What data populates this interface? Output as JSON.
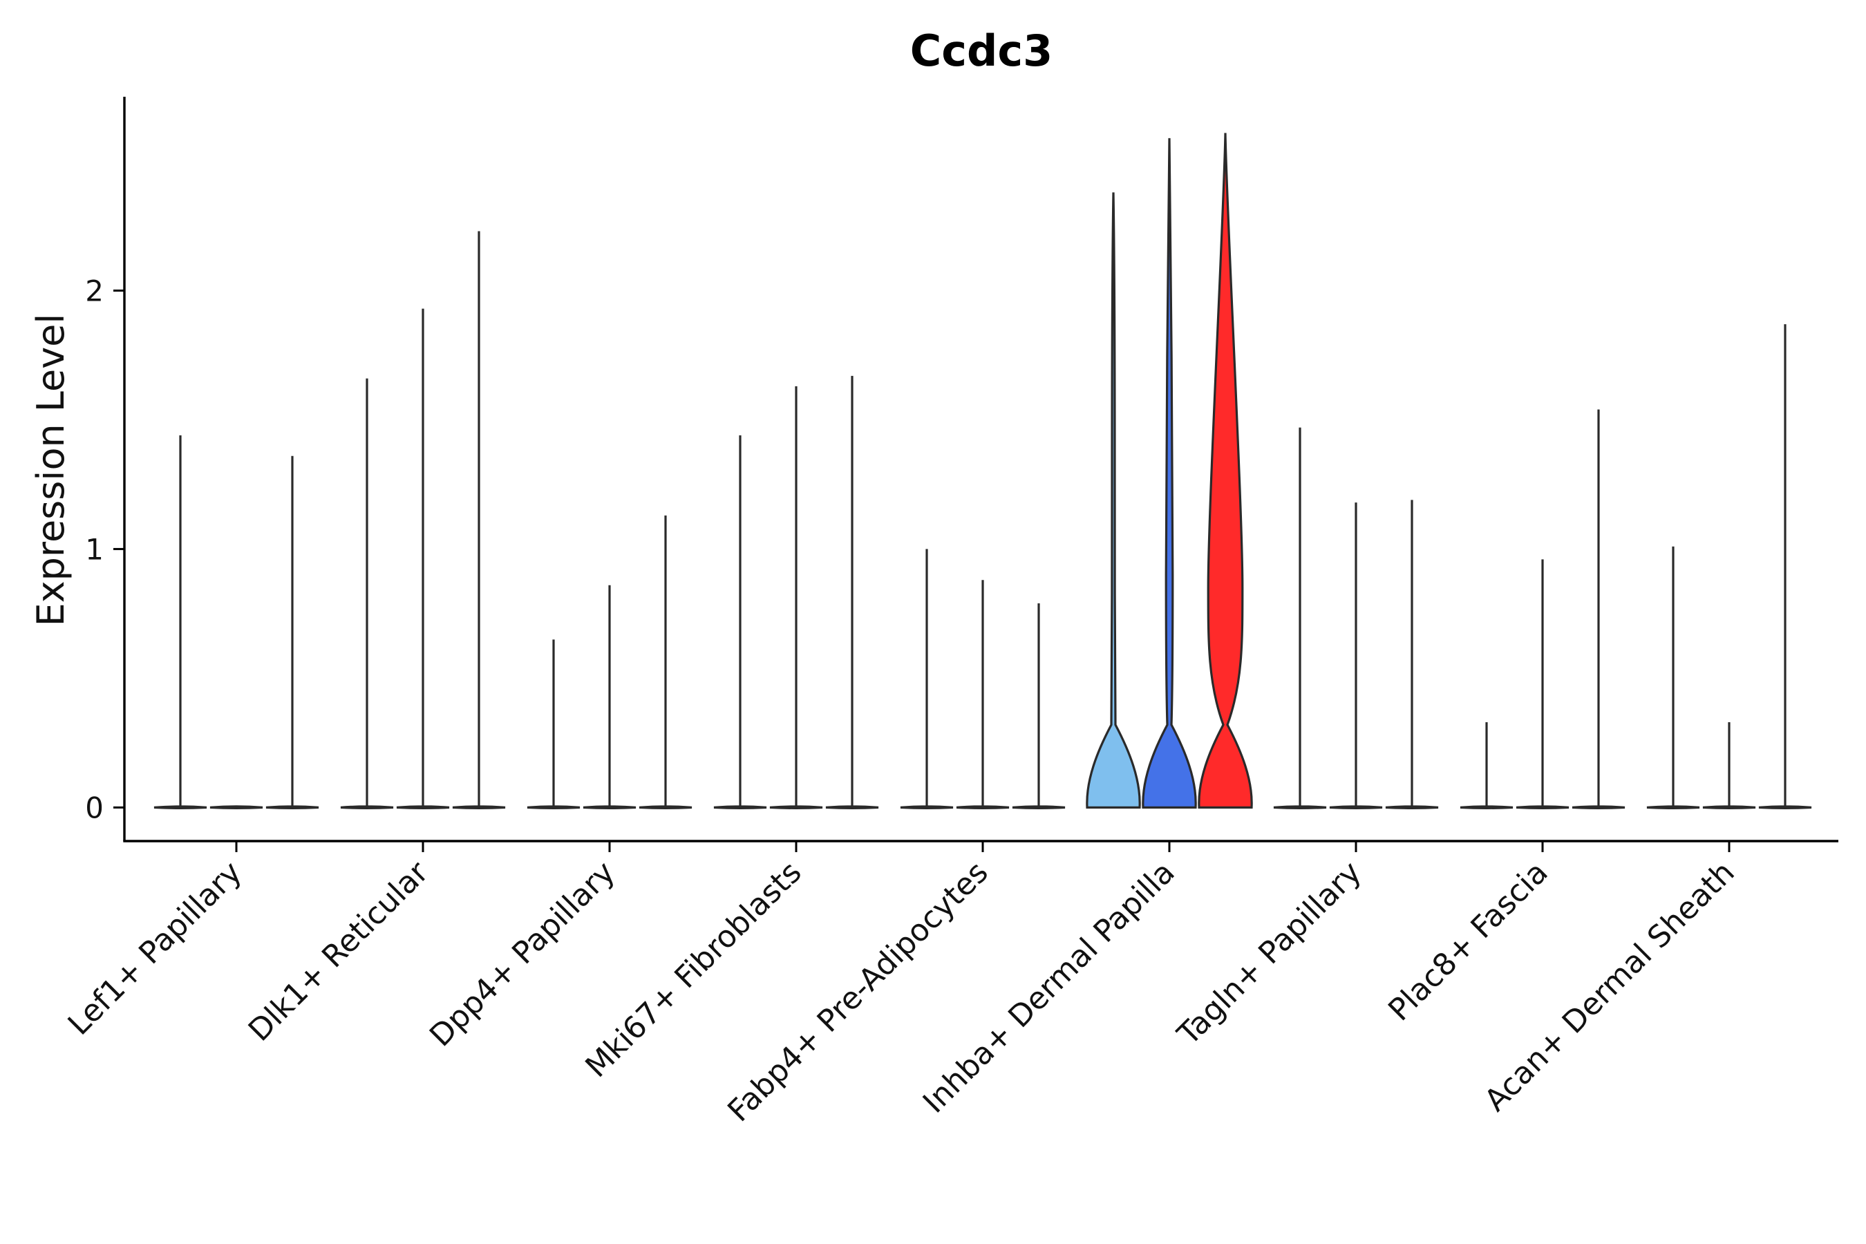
{
  "chart_data": {
    "type": "violin",
    "title": "Ccdc3",
    "xlabel": "",
    "ylabel": "Expression Level",
    "ylim": [
      -0.13,
      2.75
    ],
    "yticks": [
      0,
      1,
      2
    ],
    "grid": false,
    "legend": "none",
    "groups_per_category": 3,
    "categories": [
      "Lef1+ Papillary",
      "Dlk1+ Reticular",
      "Dpp4+ Papillary",
      "Mki67+ Fibroblasts",
      "Fabp4+ Pre-Adipocytes",
      "Inhba+ Dermal Papilla",
      "Tagln+ Papillary",
      "Plac8+ Fascia",
      "Acan+ Dermal Sheath"
    ],
    "violins": [
      {
        "category": "Lef1+ Papillary",
        "group": 1,
        "max": 1.44,
        "fill": "#ffffff"
      },
      {
        "category": "Lef1+ Papillary",
        "group": 2,
        "max": 0.0,
        "fill": "#ffffff"
      },
      {
        "category": "Lef1+ Papillary",
        "group": 3,
        "max": 1.36,
        "fill": "#ffffff"
      },
      {
        "category": "Dlk1+ Reticular",
        "group": 1,
        "max": 1.66,
        "fill": "#ffffff"
      },
      {
        "category": "Dlk1+ Reticular",
        "group": 2,
        "max": 1.93,
        "fill": "#ffffff"
      },
      {
        "category": "Dlk1+ Reticular",
        "group": 3,
        "max": 2.23,
        "fill": "#ffffff"
      },
      {
        "category": "Dpp4+ Papillary",
        "group": 1,
        "max": 0.65,
        "fill": "#ffffff"
      },
      {
        "category": "Dpp4+ Papillary",
        "group": 2,
        "max": 0.86,
        "fill": "#ffffff"
      },
      {
        "category": "Dpp4+ Papillary",
        "group": 3,
        "max": 1.13,
        "fill": "#ffffff"
      },
      {
        "category": "Mki67+ Fibroblasts",
        "group": 1,
        "max": 1.44,
        "fill": "#ffffff"
      },
      {
        "category": "Mki67+ Fibroblasts",
        "group": 2,
        "max": 1.63,
        "fill": "#ffffff"
      },
      {
        "category": "Mki67+ Fibroblasts",
        "group": 3,
        "max": 1.67,
        "fill": "#ffffff"
      },
      {
        "category": "Fabp4+ Pre-Adipocytes",
        "group": 1,
        "max": 1.0,
        "fill": "#ffffff"
      },
      {
        "category": "Fabp4+ Pre-Adipocytes",
        "group": 2,
        "max": 0.88,
        "fill": "#ffffff"
      },
      {
        "category": "Fabp4+ Pre-Adipocytes",
        "group": 3,
        "max": 0.79,
        "fill": "#ffffff"
      },
      {
        "category": "Inhba+ Dermal Papilla",
        "group": 1,
        "max": 2.38,
        "fill": "#7fbfee"
      },
      {
        "category": "Inhba+ Dermal Papilla",
        "group": 2,
        "max": 2.59,
        "fill": "#4472e8"
      },
      {
        "category": "Inhba+ Dermal Papilla",
        "group": 3,
        "max": 2.61,
        "fill": "#ff2a2a"
      },
      {
        "category": "Tagln+ Papillary",
        "group": 1,
        "max": 1.47,
        "fill": "#ffffff"
      },
      {
        "category": "Tagln+ Papillary",
        "group": 2,
        "max": 1.18,
        "fill": "#ffffff"
      },
      {
        "category": "Tagln+ Papillary",
        "group": 3,
        "max": 1.19,
        "fill": "#ffffff"
      },
      {
        "category": "Plac8+ Fascia",
        "group": 1,
        "max": 0.33,
        "fill": "#ffffff"
      },
      {
        "category": "Plac8+ Fascia",
        "group": 2,
        "max": 0.96,
        "fill": "#ffffff"
      },
      {
        "category": "Plac8+ Fascia",
        "group": 3,
        "max": 1.54,
        "fill": "#ffffff"
      },
      {
        "category": "Acan+ Dermal Sheath",
        "group": 1,
        "max": 1.01,
        "fill": "#ffffff"
      },
      {
        "category": "Acan+ Dermal Sheath",
        "group": 2,
        "max": 0.33,
        "fill": "#ffffff"
      },
      {
        "category": "Acan+ Dermal Sheath",
        "group": 3,
        "max": 1.87,
        "fill": "#ffffff"
      }
    ],
    "violin_shapes": {
      "Inhba+ Dermal Papilla|1": {
        "base_width": 0.95,
        "bulge_level": 1.3,
        "bulge_width": 0.05
      },
      "Inhba+ Dermal Papilla|2": {
        "base_width": 0.95,
        "bulge_level": 0.9,
        "bulge_width": 0.12
      },
      "Inhba+ Dermal Papilla|3": {
        "base_width": 0.95,
        "bulge_level": 0.85,
        "bulge_width": 0.62
      }
    }
  }
}
